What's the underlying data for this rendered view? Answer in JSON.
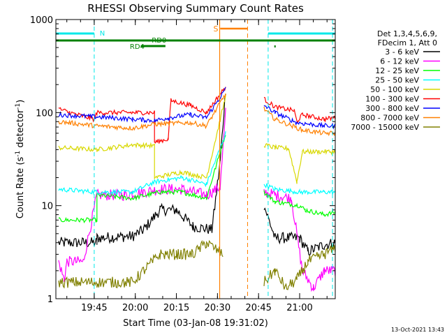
{
  "chart_data": {
    "type": "line",
    "title": "RHESSI Observing Summary Count Rates",
    "xlabel": "Start Time (03-Jan-08 19:31:02)",
    "ylabel_main": "Count Rate (s",
    "ylabel_sup1": "-1",
    "ylabel_mid": " detector",
    "ylabel_sup2": "-1",
    "ylabel_end": ")",
    "y_scale": "log",
    "ylim": [
      1,
      1000
    ],
    "y_ticks": [
      {
        "value": 1,
        "label": "1"
      },
      {
        "value": 10,
        "label": "10"
      },
      {
        "value": 100,
        "label": "100"
      },
      {
        "value": 1000,
        "label": "1000"
      }
    ],
    "x_unit": "minutes since 19:31:02 UT",
    "xlim": [
      0,
      102
    ],
    "x_ticks": [
      {
        "value": 14,
        "label": "19:45"
      },
      {
        "value": 29,
        "label": "20:00"
      },
      {
        "value": 44,
        "label": "20:15"
      },
      {
        "value": 59,
        "label": "20:30"
      },
      {
        "value": 74,
        "label": "20:45"
      },
      {
        "value": 89,
        "label": "21:00"
      }
    ],
    "legend": {
      "placement": "right",
      "header": [
        "Det 1,3,4,5,6,9,",
        "FDecim 1, Att 0"
      ]
    },
    "series": [
      {
        "name": "3 - 6 keV",
        "color": "#000000",
        "points": [
          [
            1,
            4
          ],
          [
            15,
            4
          ],
          [
            15,
            4.5
          ],
          [
            28,
            4.7
          ],
          [
            32,
            5.5
          ],
          [
            38,
            9
          ],
          [
            44,
            9
          ],
          [
            50,
            6
          ],
          [
            57,
            5.5
          ],
          [
            60,
            30
          ],
          [
            62,
            180
          ]
        ],
        "points2": [
          [
            76,
            10
          ],
          [
            80,
            4.5
          ],
          [
            89,
            4.5
          ],
          [
            92,
            3.2
          ],
          [
            98,
            3.8
          ],
          [
            102,
            4
          ]
        ]
      },
      {
        "name": "6 - 12 keV",
        "color": "#ff00ff",
        "points": [
          [
            1,
            2.5
          ],
          [
            3,
            1.6
          ],
          [
            4,
            2.5
          ],
          [
            10,
            2.5
          ],
          [
            15,
            13
          ],
          [
            25,
            13
          ],
          [
            38,
            15
          ],
          [
            46,
            15
          ],
          [
            55,
            13
          ],
          [
            60,
            16
          ],
          [
            62,
            100
          ]
        ],
        "points2": [
          [
            76,
            14
          ],
          [
            80,
            13
          ],
          [
            86,
            12
          ],
          [
            90,
            2
          ],
          [
            94,
            1.3
          ],
          [
            98,
            2
          ],
          [
            102,
            2
          ]
        ]
      },
      {
        "name": "12 - 25 keV",
        "color": "#00ff00",
        "points": [
          [
            1,
            7
          ],
          [
            15,
            7
          ],
          [
            15,
            13
          ],
          [
            28,
            12
          ],
          [
            38,
            14
          ],
          [
            46,
            14
          ],
          [
            55,
            12
          ],
          [
            62,
            60
          ]
        ],
        "points2": [
          [
            76,
            14
          ],
          [
            80,
            11
          ],
          [
            89,
            10
          ],
          [
            91,
            9
          ],
          [
            98,
            8
          ],
          [
            102,
            8.5
          ]
        ]
      },
      {
        "name": "25 - 50 keV",
        "color": "#00ffff",
        "points": [
          [
            1,
            15
          ],
          [
            15,
            14
          ],
          [
            28,
            14
          ],
          [
            36,
            18
          ],
          [
            46,
            20
          ],
          [
            55,
            17
          ],
          [
            62,
            60
          ]
        ],
        "points2": [
          [
            76,
            17
          ],
          [
            80,
            15
          ],
          [
            89,
            14
          ],
          [
            98,
            14
          ],
          [
            102,
            14
          ]
        ]
      },
      {
        "name": "50 - 100 keV",
        "color": "#d8d800",
        "points": [
          [
            1,
            42
          ],
          [
            15,
            40
          ],
          [
            28,
            45
          ],
          [
            36,
            44
          ],
          [
            36,
            20
          ],
          [
            46,
            23
          ],
          [
            55,
            20
          ],
          [
            62,
            150
          ]
        ],
        "points2": [
          [
            76,
            45
          ],
          [
            80,
            42
          ],
          [
            85,
            41
          ],
          [
            88,
            18
          ],
          [
            90,
            38
          ],
          [
            98,
            38
          ],
          [
            102,
            38
          ]
        ]
      },
      {
        "name": "100 - 300 keV",
        "color": "#ff0000",
        "points": [
          [
            1,
            110
          ],
          [
            5,
            100
          ],
          [
            14,
            85
          ],
          [
            15,
            100
          ],
          [
            28,
            100
          ],
          [
            36,
            100
          ],
          [
            36,
            48
          ],
          [
            41,
            52
          ],
          [
            42,
            135
          ],
          [
            49,
            120
          ],
          [
            55,
            100
          ],
          [
            62,
            190
          ]
        ],
        "points2": [
          [
            76,
            140
          ],
          [
            80,
            115
          ],
          [
            87,
            105
          ],
          [
            88,
            80
          ],
          [
            90,
            95
          ],
          [
            98,
            85
          ],
          [
            102,
            88
          ]
        ]
      },
      {
        "name": "300 - 800 keV",
        "color": "#0000ff",
        "points": [
          [
            1,
            95
          ],
          [
            15,
            90
          ],
          [
            28,
            85
          ],
          [
            36,
            82
          ],
          [
            41,
            88
          ],
          [
            49,
            95
          ],
          [
            55,
            88
          ],
          [
            62,
            180
          ]
        ],
        "points2": [
          [
            76,
            120
          ],
          [
            80,
            100
          ],
          [
            88,
            78
          ],
          [
            98,
            72
          ],
          [
            102,
            72
          ]
        ]
      },
      {
        "name": "800 - 7000 keV",
        "color": "#ff8000",
        "points": [
          [
            1,
            80
          ],
          [
            15,
            72
          ],
          [
            28,
            68
          ],
          [
            36,
            75
          ],
          [
            49,
            78
          ],
          [
            55,
            72
          ],
          [
            62,
            160
          ]
        ],
        "points2": [
          [
            76,
            110
          ],
          [
            80,
            85
          ],
          [
            90,
            65
          ],
          [
            98,
            60
          ],
          [
            102,
            60
          ]
        ]
      },
      {
        "name": "7000 - 15000 keV",
        "color": "#808000",
        "points": [
          [
            1,
            1.5
          ],
          [
            15,
            1.5
          ],
          [
            28,
            1.5
          ],
          [
            32,
            2
          ],
          [
            38,
            3
          ],
          [
            44,
            3
          ],
          [
            50,
            3
          ],
          [
            55,
            4
          ],
          [
            61,
            3
          ]
        ],
        "points2": [
          [
            76,
            1.5
          ],
          [
            80,
            2
          ],
          [
            84,
            1.3
          ],
          [
            88,
            1.6
          ],
          [
            92,
            2.5
          ],
          [
            98,
            3
          ],
          [
            102,
            3.5
          ]
        ]
      }
    ],
    "annotations": {
      "n_label": "N",
      "s_label": "S",
      "rd0_label": "RD0",
      "rd4_label": "RD4"
    },
    "timestamp": "13-Oct-2021 13:43"
  },
  "colors": {
    "axis": "#000000",
    "night": "#00e8e8",
    "saa": "#ff8000",
    "rd": "#008000"
  }
}
